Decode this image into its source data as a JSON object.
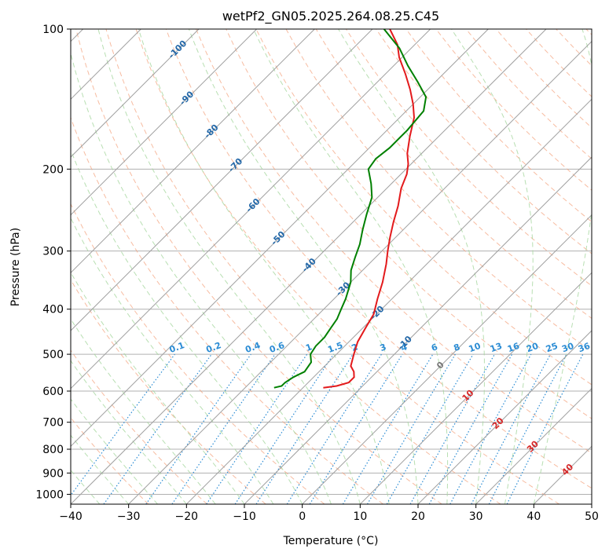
{
  "chart_data": {
    "type": "skew-t",
    "title": "wetPf2_GN05.2025.264.08.25.C45",
    "xlabel": "Temperature (°C)",
    "ylabel": "Pressure (hPa)",
    "xlim": [
      -40,
      50
    ],
    "ylim": [
      1050,
      100
    ],
    "x_ticks": [
      -40,
      -30,
      -20,
      -10,
      0,
      10,
      20,
      30,
      40,
      50
    ],
    "y_ticks": [
      100,
      200,
      300,
      400,
      500,
      600,
      700,
      800,
      900,
      1000
    ],
    "dry_adiabat_labels": [
      "-100",
      "-90",
      "-80",
      "-70",
      "-60",
      "-50",
      "-40",
      "-30",
      "-20",
      "-10",
      "0",
      "10",
      "20",
      "30",
      "40"
    ],
    "mixing_ratio_labels": [
      "0.1",
      "0.2",
      "0.4",
      "0.6",
      "1",
      "1.5",
      "2",
      "3",
      "4",
      "6",
      "8",
      "10",
      "13",
      "16",
      "20",
      "25",
      "30",
      "36"
    ],
    "colors": {
      "temperature": "#e31a1c",
      "dewpoint": "#008000",
      "dry_adiabat": "#f4a582",
      "moist_adiabat": "#a6d79f",
      "mixing_ratio": "#2b8cd4",
      "isotherm": "#9e9e9e"
    },
    "series": [
      {
        "name": "Temperature",
        "pressure": [
          590,
          585,
          575,
          560,
          545,
          530,
          500,
          470,
          440,
          410,
          380,
          350,
          320,
          300,
          280,
          260,
          240,
          220,
          205,
          195,
          185,
          170,
          155,
          145,
          135,
          125,
          115,
          108,
          100
        ],
        "temperature": [
          -16.5,
          -14.5,
          -13,
          -13,
          -14,
          -15.5,
          -17,
          -18.5,
          -19.5,
          -20.5,
          -22.5,
          -24.5,
          -27,
          -29,
          -31,
          -33,
          -35,
          -37.5,
          -39,
          -40.5,
          -42.5,
          -45,
          -47.5,
          -50,
          -53,
          -56.5,
          -60.5,
          -63,
          -67
        ]
      },
      {
        "name": "Dewpoint",
        "pressure": [
          590,
          585,
          575,
          560,
          545,
          520,
          500,
          480,
          460,
          440,
          420,
          400,
          380,
          350,
          330,
          310,
          290,
          270,
          250,
          230,
          215,
          200,
          190,
          180,
          165,
          150,
          140,
          130,
          120,
          110,
          100
        ],
        "temperature": [
          -25,
          -24,
          -24,
          -23.5,
          -22.5,
          -23,
          -24.5,
          -25,
          -25,
          -25.5,
          -26,
          -27,
          -28,
          -30,
          -32,
          -33.5,
          -35,
          -37,
          -39,
          -41,
          -43.5,
          -46.5,
          -47,
          -46.5,
          -46.5,
          -47,
          -49,
          -53,
          -57.5,
          -62,
          -68
        ]
      }
    ]
  }
}
